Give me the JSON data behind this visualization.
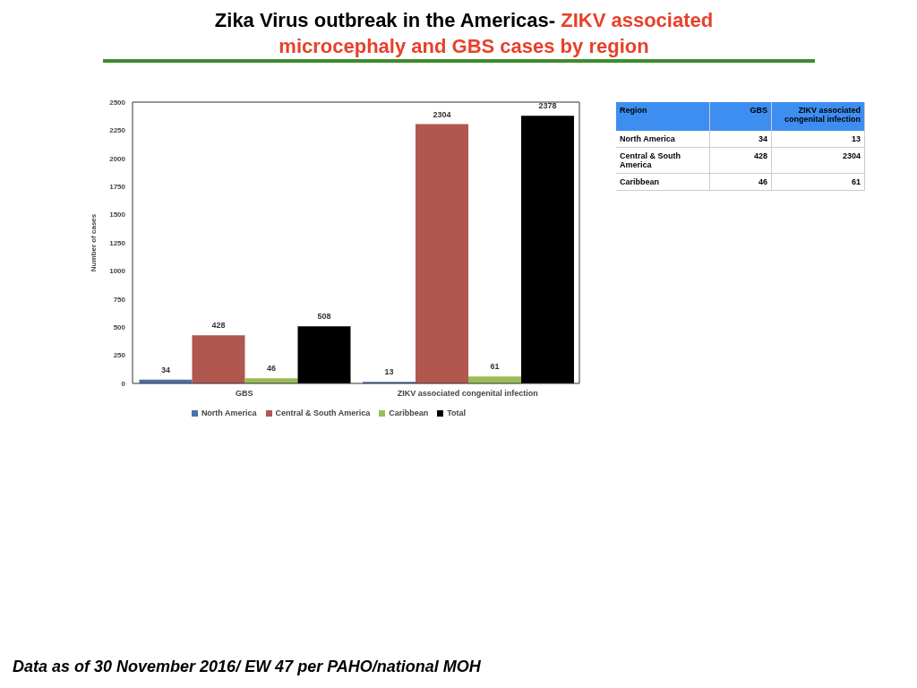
{
  "chart_data": [
    {
      "type": "bar",
      "title": "Zika Virus outbreak in the Americas-",
      "subtitle": "ZIKV associated microcephaly and GBS cases by region",
      "ylabel": "Number of cases",
      "categories": [
        "GBS",
        "ZIKV associated congenital infection"
      ],
      "series": [
        {
          "name": "North America",
          "color": "#4f6fa8",
          "values": [
            34,
            13
          ]
        },
        {
          "name": "Central & South America",
          "color": "#b0574f",
          "values": [
            428,
            2304
          ]
        },
        {
          "name": "Caribbean",
          "color": "#9bbb59",
          "values": [
            46,
            61
          ]
        },
        {
          "name": "Total",
          "color": "#000000",
          "values": [
            508,
            2378
          ]
        }
      ],
      "ylim": [
        0,
        2500
      ],
      "yticks": [
        0,
        250,
        500,
        750,
        1000,
        1250,
        1500,
        1750,
        2000,
        2250,
        2500
      ],
      "grid": false,
      "legend": "bottom",
      "data_labels": true,
      "annotations": [
        "Data as of 30 November 2016/ EW 47 per PAHO/national MOH"
      ]
    },
    {
      "type": "other",
      "categories": [
        "GBS",
        "ZIKV associated congenital infection"
      ],
      "series": [
        {
          "name": "North America",
          "values": [
            34,
            13
          ]
        },
        {
          "name": "Central & South America",
          "values": [
            428,
            2304
          ]
        },
        {
          "name": "Caribbean",
          "values": [
            46,
            61
          ]
        }
      ],
      "data_labels": true,
      "annotations": [
        "Region"
      ]
    }
  ]
}
